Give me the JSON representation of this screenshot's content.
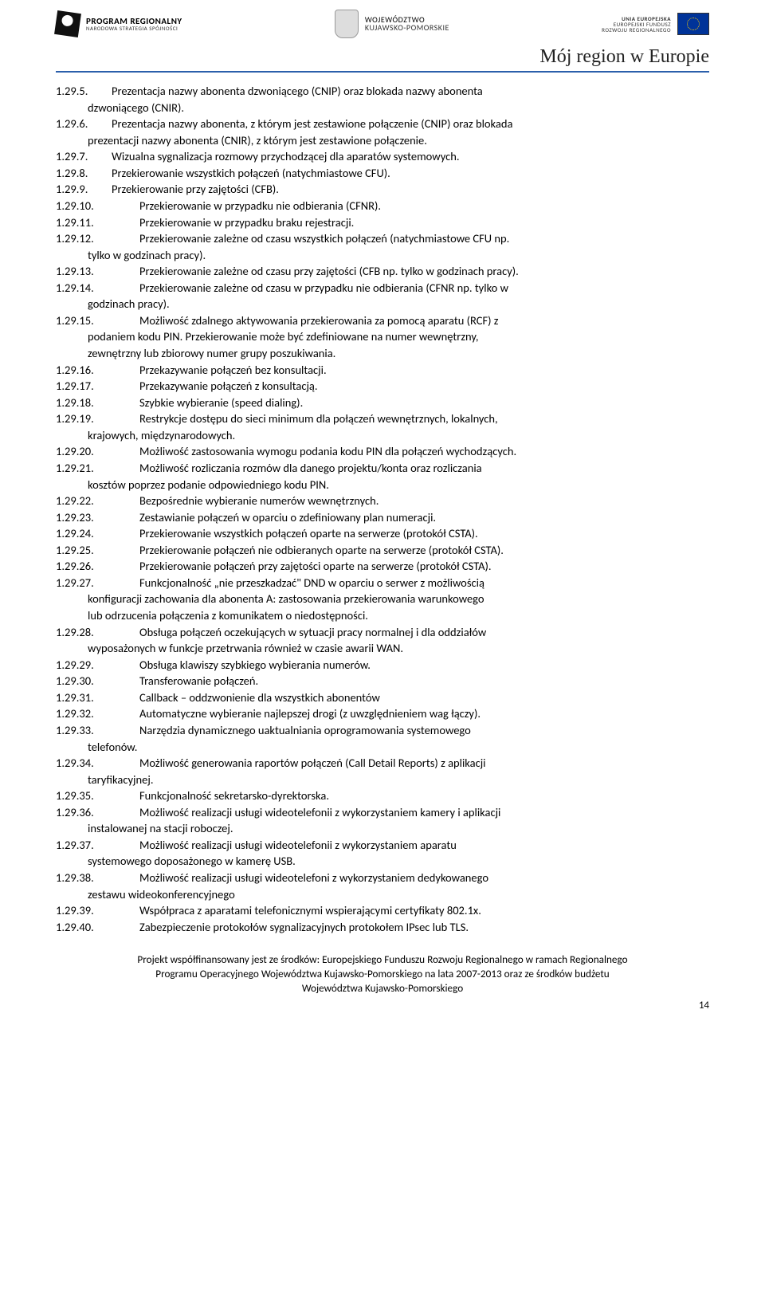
{
  "header": {
    "left_title": "PROGRAM REGIONALNY",
    "left_sub": "NARODOWA STRATEGIA SPÓJNOŚCI",
    "mid_title": "WOJEWÓDZTWO",
    "mid_sub": "KUJAWSKO-POMORSKIE",
    "right_line1": "UNIA EUROPEJSKA",
    "right_line2": "EUROPEJSKI FUNDUSZ",
    "right_line3": "ROZWOJU REGIONALNEGO",
    "region_tag": "Mój region w Europie"
  },
  "items": [
    {
      "num": "1.29.5.",
      "text": "Prezentacja nazwy abonenta dzwoniącego (CNIP) oraz blokada nazwy abonenta",
      "cont": [
        "dzwoniącego (CNIR)."
      ],
      "narrow": true
    },
    {
      "num": "1.29.6.",
      "text": "Prezentacja nazwy abonenta, z którym jest zestawione połączenie (CNIP) oraz blokada",
      "cont": [
        "prezentacji nazwy abonenta (CNIR), z którym jest zestawione połączenie."
      ],
      "narrow": true
    },
    {
      "num": "1.29.7.",
      "text": "Wizualna sygnalizacja rozmowy przychodzącej dla aparatów systemowych.",
      "narrow": true
    },
    {
      "num": "1.29.8.",
      "text": "Przekierowanie wszystkich połączeń (natychmiastowe CFU).",
      "narrow": true
    },
    {
      "num": "1.29.9.",
      "text": "Przekierowanie przy zajętości (CFB).",
      "narrow": true
    },
    {
      "num": "1.29.10.",
      "text": "Przekierowanie w przypadku nie odbierania (CFNR)."
    },
    {
      "num": "1.29.11.",
      "text": "Przekierowanie w przypadku braku rejestracji."
    },
    {
      "num": "1.29.12.",
      "text": "Przekierowanie zależne od czasu wszystkich połączeń (natychmiastowe CFU np.",
      "cont": [
        "tylko w godzinach pracy)."
      ]
    },
    {
      "num": "1.29.13.",
      "text": "Przekierowanie zależne od czasu przy zajętości (CFB np. tylko w godzinach pracy)."
    },
    {
      "num": "1.29.14.",
      "text": "Przekierowanie zależne od czasu w przypadku nie odbierania (CFNR np. tylko w",
      "cont": [
        "godzinach pracy)."
      ]
    },
    {
      "num": "1.29.15.",
      "text": "Możliwość zdalnego aktywowania przekierowania za pomocą aparatu (RCF) z",
      "cont": [
        "podaniem kodu PIN. Przekierowanie może być zdefiniowane na numer wewnętrzny,",
        "zewnętrzny lub zbiorowy numer grupy poszukiwania."
      ]
    },
    {
      "num": "1.29.16.",
      "text": "Przekazywanie połączeń bez konsultacji."
    },
    {
      "num": "1.29.17.",
      "text": "Przekazywanie połączeń z konsultacją."
    },
    {
      "num": "1.29.18.",
      "text": "Szybkie wybieranie (speed dialing)."
    },
    {
      "num": "1.29.19.",
      "text": "Restrykcje dostępu do sieci minimum dla połączeń wewnętrznych, lokalnych,",
      "cont": [
        "krajowych, międzynarodowych."
      ]
    },
    {
      "num": "1.29.20.",
      "text": "Możliwość zastosowania wymogu podania kodu PIN dla połączeń wychodzących."
    },
    {
      "num": "1.29.21.",
      "text": "Możliwość rozliczania rozmów dla danego projektu/konta oraz rozliczania",
      "cont": [
        "kosztów poprzez podanie odpowiedniego kodu PIN."
      ]
    },
    {
      "num": "1.29.22.",
      "text": "Bezpośrednie wybieranie numerów wewnętrznych."
    },
    {
      "num": "1.29.23.",
      "text": "Zestawianie połączeń w oparciu o zdefiniowany plan numeracji."
    },
    {
      "num": "1.29.24.",
      "text": "Przekierowanie wszystkich połączeń oparte na serwerze (protokół CSTA)."
    },
    {
      "num": "1.29.25.",
      "text": "Przekierowanie połączeń nie odbieranych oparte na serwerze (protokół CSTA)."
    },
    {
      "num": "1.29.26.",
      "text": "Przekierowanie połączeń przy zajętości oparte na serwerze (protokół CSTA)."
    },
    {
      "num": "1.29.27.",
      "text": "Funkcjonalność „nie przeszkadzać\" DND w oparciu o serwer z możliwością",
      "cont": [
        "konfiguracji zachowania dla abonenta A: zastosowania przekierowania warunkowego",
        "lub odrzucenia połączenia z komunikatem o niedostępności."
      ]
    },
    {
      "num": "1.29.28.",
      "text": "Obsługa połączeń oczekujących w sytuacji pracy normalnej i dla oddziałów",
      "cont": [
        "wyposażonych w funkcje przetrwania również w czasie awarii WAN."
      ]
    },
    {
      "num": "1.29.29.",
      "text": "Obsługa klawiszy szybkiego wybierania numerów."
    },
    {
      "num": "1.29.30.",
      "text": "Transferowanie połączeń."
    },
    {
      "num": "1.29.31.",
      "text": "Callback – oddzwonienie dla wszystkich abonentów"
    },
    {
      "num": "1.29.32.",
      "text": "Automatyczne wybieranie najlepszej drogi (z uwzględnieniem wag łączy)."
    },
    {
      "num": "1.29.33.",
      "text": "Narzędzia dynamicznego uaktualniania oprogramowania systemowego",
      "cont": [
        "telefonów."
      ]
    },
    {
      "num": "1.29.34.",
      "text": "Możliwość generowania raportów połączeń (Call Detail Reports) z aplikacji",
      "cont": [
        "taryfikacyjnej."
      ]
    },
    {
      "num": "1.29.35.",
      "text": "Funkcjonalność sekretarsko-dyrektorska."
    },
    {
      "num": "1.29.36.",
      "text": "Możliwość realizacji usługi wideotelefonii z wykorzystaniem kamery i aplikacji",
      "cont": [
        "instalowanej na stacji roboczej."
      ]
    },
    {
      "num": "1.29.37.",
      "text": "Możliwość realizacji usługi wideotelefonii z wykorzystaniem aparatu",
      "cont": [
        "systemowego doposażonego w kamerę USB."
      ]
    },
    {
      "num": "1.29.38.",
      "text": "Możliwość realizacji usługi wideotelefoni z wykorzystaniem dedykowanego",
      "cont": [
        "zestawu wideokonferencyjnego"
      ]
    },
    {
      "num": "1.29.39.",
      "text": "Współpraca z aparatami telefonicznymi wspierającymi certyfikaty 802.1x."
    },
    {
      "num": "1.29.40.",
      "text": "Zabezpieczenie protokołów sygnalizacyjnych protokołem IPsec lub TLS."
    }
  ],
  "footer": {
    "line1": "Projekt współfinansowany jest ze środków: Europejskiego Funduszu Rozwoju Regionalnego w ramach Regionalnego",
    "line2": "Programu Operacyjnego Województwa Kujawsko-Pomorskiego na lata 2007-2013 oraz ze środków budżetu",
    "line3": "Województwa Kujawsko-Pomorskiego",
    "page": "14"
  }
}
